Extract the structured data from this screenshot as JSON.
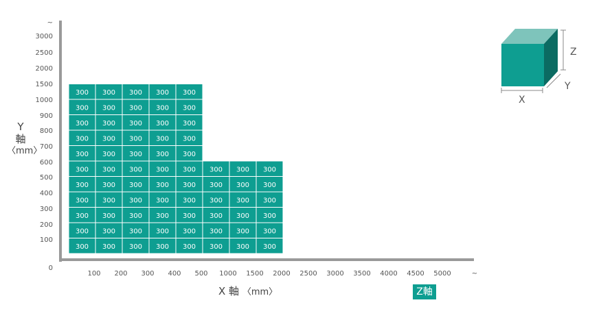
{
  "chart_data": {
    "type": "heatmap",
    "x_ticks": [
      "100",
      "200",
      "300",
      "400",
      "500",
      "1000",
      "1500",
      "2000",
      "2500",
      "3000",
      "3500",
      "4000",
      "4500",
      "5000",
      "~"
    ],
    "y_ticks": [
      "0",
      "100",
      "200",
      "300",
      "400",
      "500",
      "600",
      "700",
      "800",
      "900",
      "1000",
      "1500",
      "2000",
      "2500",
      "3000",
      "~"
    ],
    "cell_label": "300",
    "columns": [
      {
        "x": "100",
        "height": 11
      },
      {
        "x": "200",
        "height": 11
      },
      {
        "x": "300",
        "height": 11
      },
      {
        "x": "400",
        "height": 11
      },
      {
        "x": "500",
        "height": 11
      },
      {
        "x": "1000",
        "height": 6
      },
      {
        "x": "1500",
        "height": 6
      },
      {
        "x": "2000",
        "height": 6
      }
    ],
    "colors": {
      "cell": "#0e9e91",
      "cell_border": "#ffffff",
      "axis": "#999999",
      "badge": "#0e9e91"
    }
  },
  "axes": {
    "y_title_main": "Y",
    "y_title_kanji": "軸",
    "y_title_unit": "〈mm〉",
    "x_title_main": "X 軸",
    "x_title_unit": "〈mm〉",
    "z_badge": "Z軸"
  },
  "legend_box": {
    "x_label": "X",
    "y_label": "Y",
    "z_label": "Z",
    "colors": {
      "front": "#0e9e91",
      "top": "#7ec4bb",
      "side": "#0b6b62"
    }
  }
}
